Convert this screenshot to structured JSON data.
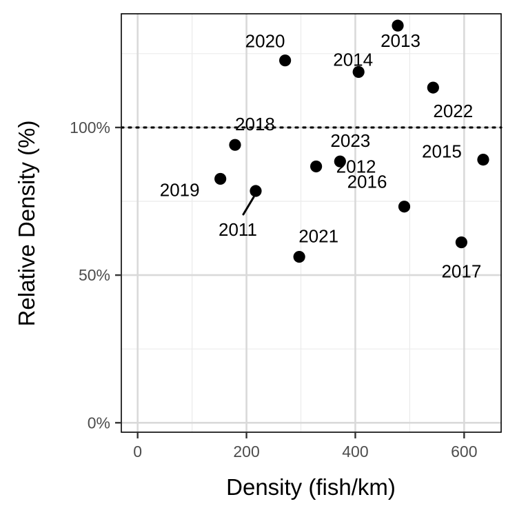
{
  "chart_data": {
    "type": "scatter",
    "title": "",
    "xlabel": "Density (fish/km)",
    "ylabel": "Relative Density (%)",
    "xlim": [
      -30,
      668
    ],
    "ylim": [
      -3.2,
      138.5
    ],
    "x_ticks": [
      0,
      200,
      400,
      600
    ],
    "x_tick_labels": [
      "0",
      "200",
      "400",
      "600"
    ],
    "y_ticks": [
      0,
      50,
      100
    ],
    "y_tick_labels": [
      "0%",
      "50%",
      "100%"
    ],
    "grid": true,
    "reference_line": {
      "y": 100,
      "style": "dotted"
    },
    "points": [
      {
        "label": "2011",
        "x": 217,
        "y": 78.5
      },
      {
        "label": "2012",
        "x": 328,
        "y": 86.8
      },
      {
        "label": "2013",
        "x": 478,
        "y": 134.5
      },
      {
        "label": "2014",
        "x": 406,
        "y": 118.8
      },
      {
        "label": "2015",
        "x": 635,
        "y": 89.1
      },
      {
        "label": "2016",
        "x": 490,
        "y": 73.2
      },
      {
        "label": "2017",
        "x": 595,
        "y": 61.1
      },
      {
        "label": "2018",
        "x": 179,
        "y": 94.1
      },
      {
        "label": "2019",
        "x": 152,
        "y": 82.6
      },
      {
        "label": "2020",
        "x": 271,
        "y": 122.7
      },
      {
        "label": "2021",
        "x": 297,
        "y": 56.2
      },
      {
        "label": "2022",
        "x": 543,
        "y": 113.5
      },
      {
        "label": "2023",
        "x": 372,
        "y": 88.5
      }
    ]
  },
  "colors": {
    "point": "#000000",
    "grid_major": "#d9d9d9",
    "grid_minor": "#ebebeb",
    "panel_border": "#000000",
    "tick_text": "#4d4d4d"
  }
}
